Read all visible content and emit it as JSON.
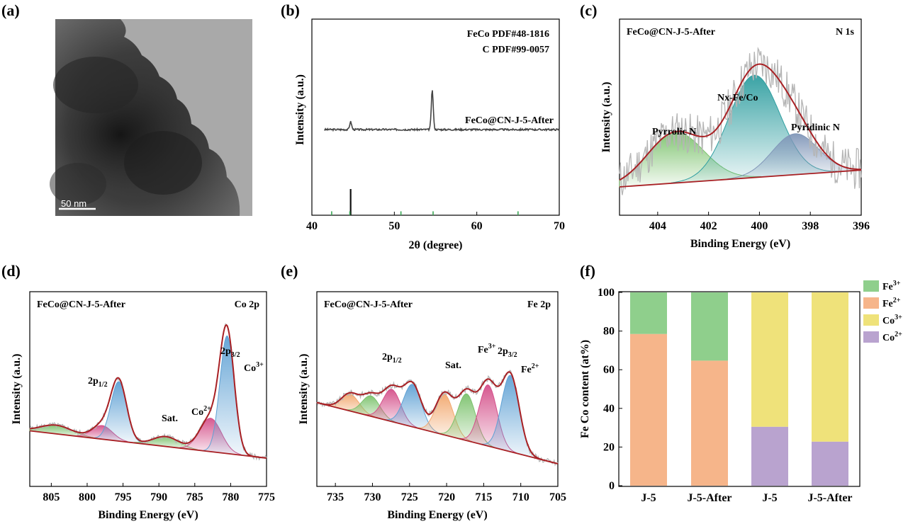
{
  "panel_labels": [
    "(a)",
    "(b)",
    "(c)",
    "(d)",
    "(e)",
    "(f)"
  ],
  "tem": {
    "scale_bar": "50 nm"
  },
  "colors": {
    "fe3": "#8fcf8c",
    "fe2": "#f6b58a",
    "co3": "#efe27a",
    "co2": "#b9a3cf",
    "fit": "#a82024",
    "raw": "#b5b5b5",
    "blue_peak": "#5fa1d4",
    "pink_peak": "#d4508a",
    "green_peak": "#7cc26d",
    "teal_peak": "#2f9ea0",
    "orange_peak": "#f2a86e"
  },
  "chart_data": [
    {
      "id": "b",
      "type": "line",
      "title": "",
      "xlabel": "2θ (degree)",
      "ylabel": "Intensity (a.u.)",
      "xlim": [
        40,
        70
      ],
      "xticks": [
        "40",
        "50",
        "60",
        "70"
      ],
      "legend": [
        {
          "label": "FeCo PDF#48-1816",
          "color": "#222222"
        },
        {
          "label": "C      PDF#99-0057",
          "color": "#3aa655"
        }
      ],
      "series_label": "FeCo@CN-J-5-After",
      "peaks": [
        {
          "x": 44.7,
          "height": 0.2
        },
        {
          "x": 54.6,
          "height": 1.0
        }
      ],
      "reference_feco": [
        {
          "x": 44.7,
          "height": 1.0
        }
      ],
      "reference_c": [
        {
          "x": 42.4,
          "height": 0.15
        },
        {
          "x": 44.6,
          "height": 0.15
        },
        {
          "x": 50.8,
          "height": 0.15
        },
        {
          "x": 54.7,
          "height": 0.15
        },
        {
          "x": 65.0,
          "height": 0.15
        }
      ]
    },
    {
      "id": "c",
      "type": "area",
      "title": "N 1s",
      "sample": "FeCo@CN-J-5-After",
      "xlabel": "Binding Energy (eV)",
      "ylabel": "Intensity (a.u.)",
      "xlim": [
        405.5,
        396
      ],
      "xticks": [
        "404",
        "402",
        "400",
        "398",
        "396"
      ],
      "tick_values": [
        404,
        402,
        400,
        398,
        396
      ],
      "components": [
        {
          "name": "Pyrrolic N",
          "center": 403.3,
          "height": 0.42,
          "width": 1.1,
          "color": "#7cc26d"
        },
        {
          "name": "Nx-Fe/Co",
          "center": 400.2,
          "height": 0.85,
          "width": 1.0,
          "color": "#2f9ea0"
        },
        {
          "name": "Pyridinic N",
          "center": 398.6,
          "height": 0.34,
          "width": 0.9,
          "color": "#8096b8"
        }
      ]
    },
    {
      "id": "d",
      "type": "area",
      "title": "Co 2p",
      "sample": "FeCo@CN-J-5-After",
      "xlabel": "Binding Energy (eV)",
      "ylabel": "Intensity (a.u.)",
      "xlim": [
        808,
        775
      ],
      "xticks": [
        "805",
        "800",
        "795",
        "790",
        "785",
        "780",
        "775"
      ],
      "tick_values": [
        805,
        800,
        795,
        790,
        785,
        780,
        775
      ],
      "annotations": [
        "2p1/2",
        "2p3/2",
        "Sat.",
        "Co2+",
        "Co3+"
      ],
      "components": [
        {
          "name": "Sat. 1",
          "center": 804.3,
          "height": 0.07,
          "width": 2.2,
          "color": "#7cc26d"
        },
        {
          "name": "Co2+ 2p1/2",
          "center": 797.9,
          "height": 0.11,
          "width": 1.4,
          "color": "#d4508a"
        },
        {
          "name": "Co3+ 2p1/2",
          "center": 795.6,
          "height": 0.48,
          "width": 1.1,
          "color": "#5fa1d4"
        },
        {
          "name": "Sat. 2",
          "center": 789.0,
          "height": 0.08,
          "width": 1.8,
          "color": "#7cc26d"
        },
        {
          "name": "Co2+ 2p3/2",
          "center": 782.8,
          "height": 0.27,
          "width": 1.5,
          "color": "#d4508a"
        },
        {
          "name": "Co3+ 2p3/2",
          "center": 780.5,
          "height": 0.95,
          "width": 1.0,
          "color": "#5fa1d4"
        }
      ]
    },
    {
      "id": "e",
      "type": "area",
      "title": "Fe 2p",
      "sample": "FeCo@CN-J-5-After",
      "xlabel": "Binding Energy (eV)",
      "ylabel": "Intensity (a.u.)",
      "xlim": [
        737.5,
        705
      ],
      "xticks": [
        "735",
        "730",
        "725",
        "720",
        "715",
        "710",
        "705"
      ],
      "tick_values": [
        735,
        730,
        725,
        720,
        715,
        710,
        705
      ],
      "annotations": [
        "2p1/2",
        "2p3/2",
        "Sat.",
        "Fe3+",
        "Fe2+"
      ],
      "components": [
        {
          "name": "Sat. a",
          "center": 733.0,
          "height": 0.2,
          "width": 1.2,
          "color": "#f2a86e"
        },
        {
          "name": "Sat. b",
          "center": 730.2,
          "height": 0.24,
          "width": 1.2,
          "color": "#7cc26d"
        },
        {
          "name": "Fe3+ 2p1/2",
          "center": 727.4,
          "height": 0.38,
          "width": 1.2,
          "color": "#d4508a"
        },
        {
          "name": "Fe2+ 2p1/2",
          "center": 724.6,
          "height": 0.5,
          "width": 1.2,
          "color": "#5fa1d4"
        },
        {
          "name": "Sat. c",
          "center": 720.3,
          "height": 0.48,
          "width": 1.2,
          "color": "#f2a86e"
        },
        {
          "name": "Sat. d",
          "center": 717.3,
          "height": 0.55,
          "width": 1.2,
          "color": "#7cc26d"
        },
        {
          "name": "Fe3+ 2p3/2",
          "center": 714.4,
          "height": 0.72,
          "width": 1.2,
          "color": "#d4508a"
        },
        {
          "name": "Fe2+ 2p3/2",
          "center": 711.4,
          "height": 0.9,
          "width": 1.2,
          "color": "#5fa1d4"
        }
      ]
    },
    {
      "id": "f",
      "type": "bar",
      "title": "",
      "xlabel": "",
      "ylabel": "Fe Co content (at%)",
      "ylim": [
        0,
        100
      ],
      "yticks": [
        "0",
        "20",
        "40",
        "60",
        "80",
        "100"
      ],
      "categories": [
        "J-5",
        "J-5-After",
        "J-5",
        "J-5-After"
      ],
      "legend_position": "top-right",
      "legend": [
        {
          "label": "Fe",
          "sup": "3+",
          "color": "#8fcf8c"
        },
        {
          "label": "Fe",
          "sup": "2+",
          "color": "#f6b58a"
        },
        {
          "label": "Co",
          "sup": "3+",
          "color": "#efe27a"
        },
        {
          "label": "Co",
          "sup": "2+",
          "color": "#b9a3cf"
        }
      ],
      "stacks": [
        [
          {
            "series": "Fe2+",
            "value": 78.5
          },
          {
            "series": "Fe3+",
            "value": 21.5
          }
        ],
        [
          {
            "series": "Fe2+",
            "value": 64.7
          },
          {
            "series": "Fe3+",
            "value": 35.3
          }
        ],
        [
          {
            "series": "Co2+",
            "value": 30.5
          },
          {
            "series": "Co3+",
            "value": 69.5
          }
        ],
        [
          {
            "series": "Co2+",
            "value": 22.8
          },
          {
            "series": "Co3+",
            "value": 77.2
          }
        ]
      ]
    }
  ]
}
